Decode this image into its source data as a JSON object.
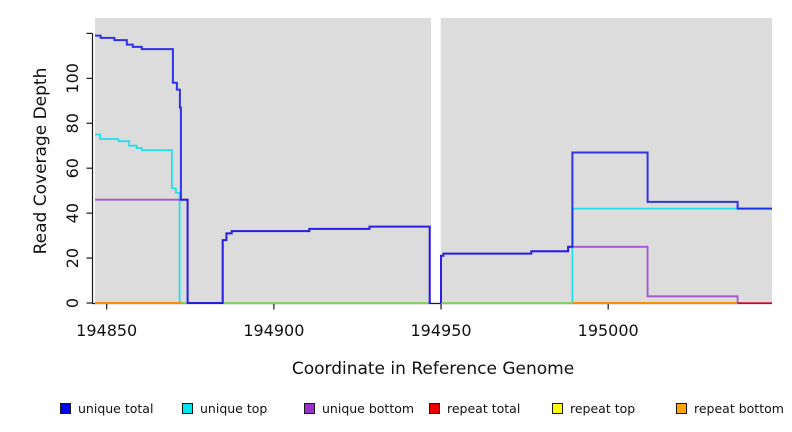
{
  "figure": {
    "xlabel": "Coordinate in Reference Genome",
    "ylabel": "Read Coverage Depth"
  },
  "legend": {
    "items": [
      {
        "label": "unique total",
        "color": "#0000EE"
      },
      {
        "label": "unique top",
        "color": "#00E5EE"
      },
      {
        "label": "unique bottom",
        "color": "#9932CC"
      },
      {
        "label": "repeat total",
        "color": "#EE0000"
      },
      {
        "label": "repeat top",
        "color": "#FFFF00"
      },
      {
        "label": "repeat bottom",
        "color": "#FFA500"
      }
    ]
  },
  "chart_data": {
    "type": "line",
    "subtype": "step-coverage",
    "title": "",
    "xlabel": "Coordinate in Reference Genome",
    "ylabel": "Read Coverage Depth",
    "xlim": [
      194846.5,
      195049
    ],
    "ylim": [
      0,
      127
    ],
    "x_ticks": [
      194850,
      194900,
      194950,
      195000
    ],
    "y_ticks": [
      0,
      20,
      40,
      60,
      80,
      100,
      120
    ],
    "y_tick_labels": [
      "0",
      "20",
      "40",
      "60",
      "80",
      "100",
      ""
    ],
    "grid": false,
    "legend_position": "bottom",
    "plot_bg": "#DCDCDC",
    "masked_region": {
      "x0": 194947,
      "x1": 194949.9
    },
    "series": [
      {
        "name": "repeat total",
        "color": "#DC143C",
        "opacity": 0.85,
        "width": 1.8,
        "segments": [
          [
            [
              194846.5,
              0
            ],
            [
              194947,
              0
            ]
          ],
          [
            [
              194950,
              0
            ],
            [
              195049,
              0
            ]
          ]
        ]
      },
      {
        "name": "unique top",
        "color": "#00E0EE",
        "opacity": 0.85,
        "width": 1.8,
        "segments": [
          [
            [
              194846.5,
              75
            ],
            [
              194848,
              75
            ],
            [
              194848,
              73
            ],
            [
              194853.5,
              73
            ],
            [
              194853.5,
              72
            ],
            [
              194856.7,
              72
            ],
            [
              194856.7,
              70
            ],
            [
              194859,
              70
            ],
            [
              194859,
              69
            ],
            [
              194860.5,
              69
            ],
            [
              194860.5,
              68
            ],
            [
              194869.5,
              68
            ],
            [
              194869.5,
              51
            ],
            [
              194870.7,
              51
            ],
            [
              194870.7,
              49
            ],
            [
              194871.8,
              49
            ],
            [
              194871.8,
              0
            ],
            [
              194947,
              0
            ]
          ],
          [
            [
              194950,
              0
            ],
            [
              194989.3,
              0
            ],
            [
              194989.3,
              42
            ],
            [
              195049,
              42
            ]
          ]
        ]
      },
      {
        "name": "repeat top",
        "color": "#E8F000",
        "opacity": 0.55,
        "width": 1.8,
        "segments": [
          [
            [
              194846.5,
              0
            ],
            [
              194947,
              0
            ]
          ],
          [
            [
              194950,
              0
            ],
            [
              195038.7,
              0
            ]
          ]
        ]
      },
      {
        "name": "repeat bottom",
        "color": "#FF9100",
        "opacity": 1,
        "width": 1.8,
        "segments": [
          [
            [
              194846.5,
              0
            ],
            [
              194872.5,
              0
            ]
          ],
          [
            [
              194989.3,
              0
            ],
            [
              195038.7,
              0
            ]
          ]
        ]
      },
      {
        "name": "unique bottom",
        "color": "#9932CC",
        "opacity": 0.8,
        "width": 1.8,
        "segments": [
          [
            [
              194846.5,
              46
            ],
            [
              194874.2,
              46
            ],
            [
              194874.2,
              0
            ],
            [
              194884.7,
              0
            ],
            [
              194884.7,
              28
            ],
            [
              194885.8,
              28
            ],
            [
              194885.8,
              31
            ],
            [
              194887.4,
              31
            ],
            [
              194887.4,
              32
            ],
            [
              194910.6,
              32
            ],
            [
              194910.6,
              33
            ],
            [
              194928.6,
              33
            ],
            [
              194928.6,
              34
            ],
            [
              194946.6,
              34
            ],
            [
              194946.6,
              0
            ],
            [
              194947,
              0
            ]
          ],
          [
            [
              194950,
              0
            ],
            [
              194950,
              21
            ],
            [
              194950.7,
              21
            ],
            [
              194950.7,
              22
            ],
            [
              194977,
              22
            ],
            [
              194977,
              23
            ],
            [
              194988,
              23
            ],
            [
              194988,
              25
            ],
            [
              195011.8,
              25
            ],
            [
              195011.8,
              3
            ],
            [
              195038.7,
              3
            ],
            [
              195038.7,
              0
            ]
          ]
        ]
      },
      {
        "name": "unique total",
        "color": "#1414E6",
        "opacity": 0.85,
        "width": 2,
        "segments": [
          [
            [
              194846.5,
              119
            ],
            [
              194848.2,
              119
            ],
            [
              194848.2,
              118
            ],
            [
              194852.3,
              118
            ],
            [
              194852.3,
              117
            ],
            [
              194856,
              117
            ],
            [
              194856,
              115
            ],
            [
              194857.8,
              115
            ],
            [
              194857.8,
              114
            ],
            [
              194860.5,
              114
            ],
            [
              194860.5,
              113
            ],
            [
              194869.8,
              113
            ],
            [
              194869.8,
              98
            ],
            [
              194871,
              98
            ],
            [
              194871,
              95
            ],
            [
              194871.9,
              95
            ],
            [
              194871.9,
              87
            ],
            [
              194872.2,
              87
            ],
            [
              194872.2,
              46
            ],
            [
              194874.2,
              46
            ],
            [
              194874.2,
              0
            ],
            [
              194884.7,
              0
            ],
            [
              194884.7,
              28
            ],
            [
              194885.8,
              28
            ],
            [
              194885.8,
              31
            ],
            [
              194887.4,
              31
            ],
            [
              194887.4,
              32
            ],
            [
              194910.6,
              32
            ],
            [
              194910.6,
              33
            ],
            [
              194928.6,
              33
            ],
            [
              194928.6,
              34
            ],
            [
              194946.6,
              34
            ],
            [
              194946.6,
              0
            ],
            [
              194947,
              0
            ]
          ],
          [
            [
              194950,
              0
            ],
            [
              194950,
              21
            ],
            [
              194950.7,
              21
            ],
            [
              194950.7,
              22
            ],
            [
              194977,
              22
            ],
            [
              194977,
              23
            ],
            [
              194988,
              23
            ],
            [
              194988,
              25
            ],
            [
              194989.3,
              25
            ],
            [
              194989.3,
              67
            ],
            [
              195011.8,
              67
            ],
            [
              195011.8,
              45
            ],
            [
              195038.7,
              45
            ],
            [
              195038.7,
              42
            ],
            [
              195049,
              42
            ]
          ]
        ]
      }
    ]
  }
}
